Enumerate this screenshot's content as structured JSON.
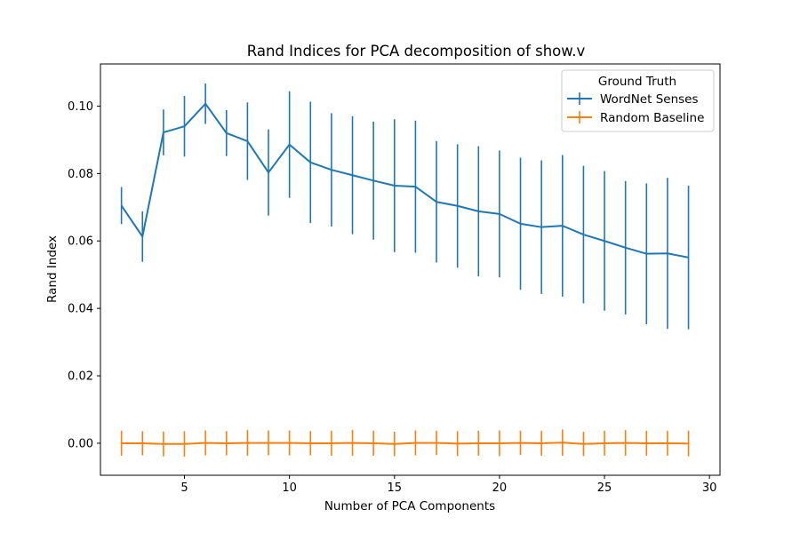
{
  "chart_data": {
    "type": "line",
    "title": "Rand Indices for PCA decomposition of show.v",
    "xlabel": "Number of PCA Components",
    "ylabel": "Rand Index",
    "xlim": [
      1,
      30.5
    ],
    "ylim": [
      -0.0095,
      0.1125
    ],
    "xticks": [
      5,
      10,
      15,
      20,
      25,
      30
    ],
    "yticks": [
      0.0,
      0.02,
      0.04,
      0.06,
      0.08,
      0.1
    ],
    "ytick_labels": [
      "0.00",
      "0.02",
      "0.04",
      "0.06",
      "0.08",
      "0.10"
    ],
    "grid": false,
    "legend": {
      "title": "Ground Truth",
      "placement": "top-right"
    },
    "x": [
      2,
      3,
      4,
      5,
      6,
      7,
      8,
      9,
      10,
      11,
      12,
      13,
      14,
      15,
      16,
      17,
      18,
      19,
      20,
      21,
      22,
      23,
      24,
      25,
      26,
      27,
      28,
      29
    ],
    "series": [
      {
        "name": "WordNet Senses",
        "color": "#1f77b4",
        "values": [
          0.0705,
          0.0613,
          0.0922,
          0.094,
          0.1007,
          0.092,
          0.0896,
          0.0803,
          0.0886,
          0.0833,
          0.0811,
          0.0795,
          0.0779,
          0.0764,
          0.0761,
          0.0716,
          0.0704,
          0.0688,
          0.068,
          0.0651,
          0.0641,
          0.0645,
          0.0619,
          0.06,
          0.058,
          0.0562,
          0.0563,
          0.0551
        ],
        "errors": [
          0.0055,
          0.0075,
          0.0068,
          0.009,
          0.006,
          0.0068,
          0.0115,
          0.0128,
          0.0158,
          0.018,
          0.0168,
          0.0175,
          0.0175,
          0.0197,
          0.0196,
          0.018,
          0.0183,
          0.0193,
          0.0188,
          0.0196,
          0.0198,
          0.021,
          0.0204,
          0.0207,
          0.0198,
          0.0209,
          0.0224,
          0.0213
        ]
      },
      {
        "name": "Random Baseline",
        "color": "#ff7f0e",
        "values": [
          0.0,
          0.0,
          -0.0002,
          -0.0002,
          0.0001,
          0.0,
          0.0001,
          0.0001,
          0.0001,
          0.0,
          0.0,
          0.0001,
          0.0,
          -0.0002,
          0.0001,
          0.0001,
          -0.0001,
          0.0,
          0.0,
          0.0001,
          0.0,
          0.0002,
          -0.0002,
          0.0,
          0.0001,
          0.0,
          0.0,
          -0.0001
        ],
        "errors": [
          0.0037,
          0.0036,
          0.0037,
          0.0038,
          0.0037,
          0.0036,
          0.0038,
          0.0037,
          0.0037,
          0.0036,
          0.0037,
          0.0038,
          0.0037,
          0.0036,
          0.0037,
          0.0036,
          0.0037,
          0.0037,
          0.0038,
          0.0036,
          0.0037,
          0.0039,
          0.0036,
          0.0037,
          0.0038,
          0.0037,
          0.0037,
          0.0038
        ]
      }
    ]
  }
}
